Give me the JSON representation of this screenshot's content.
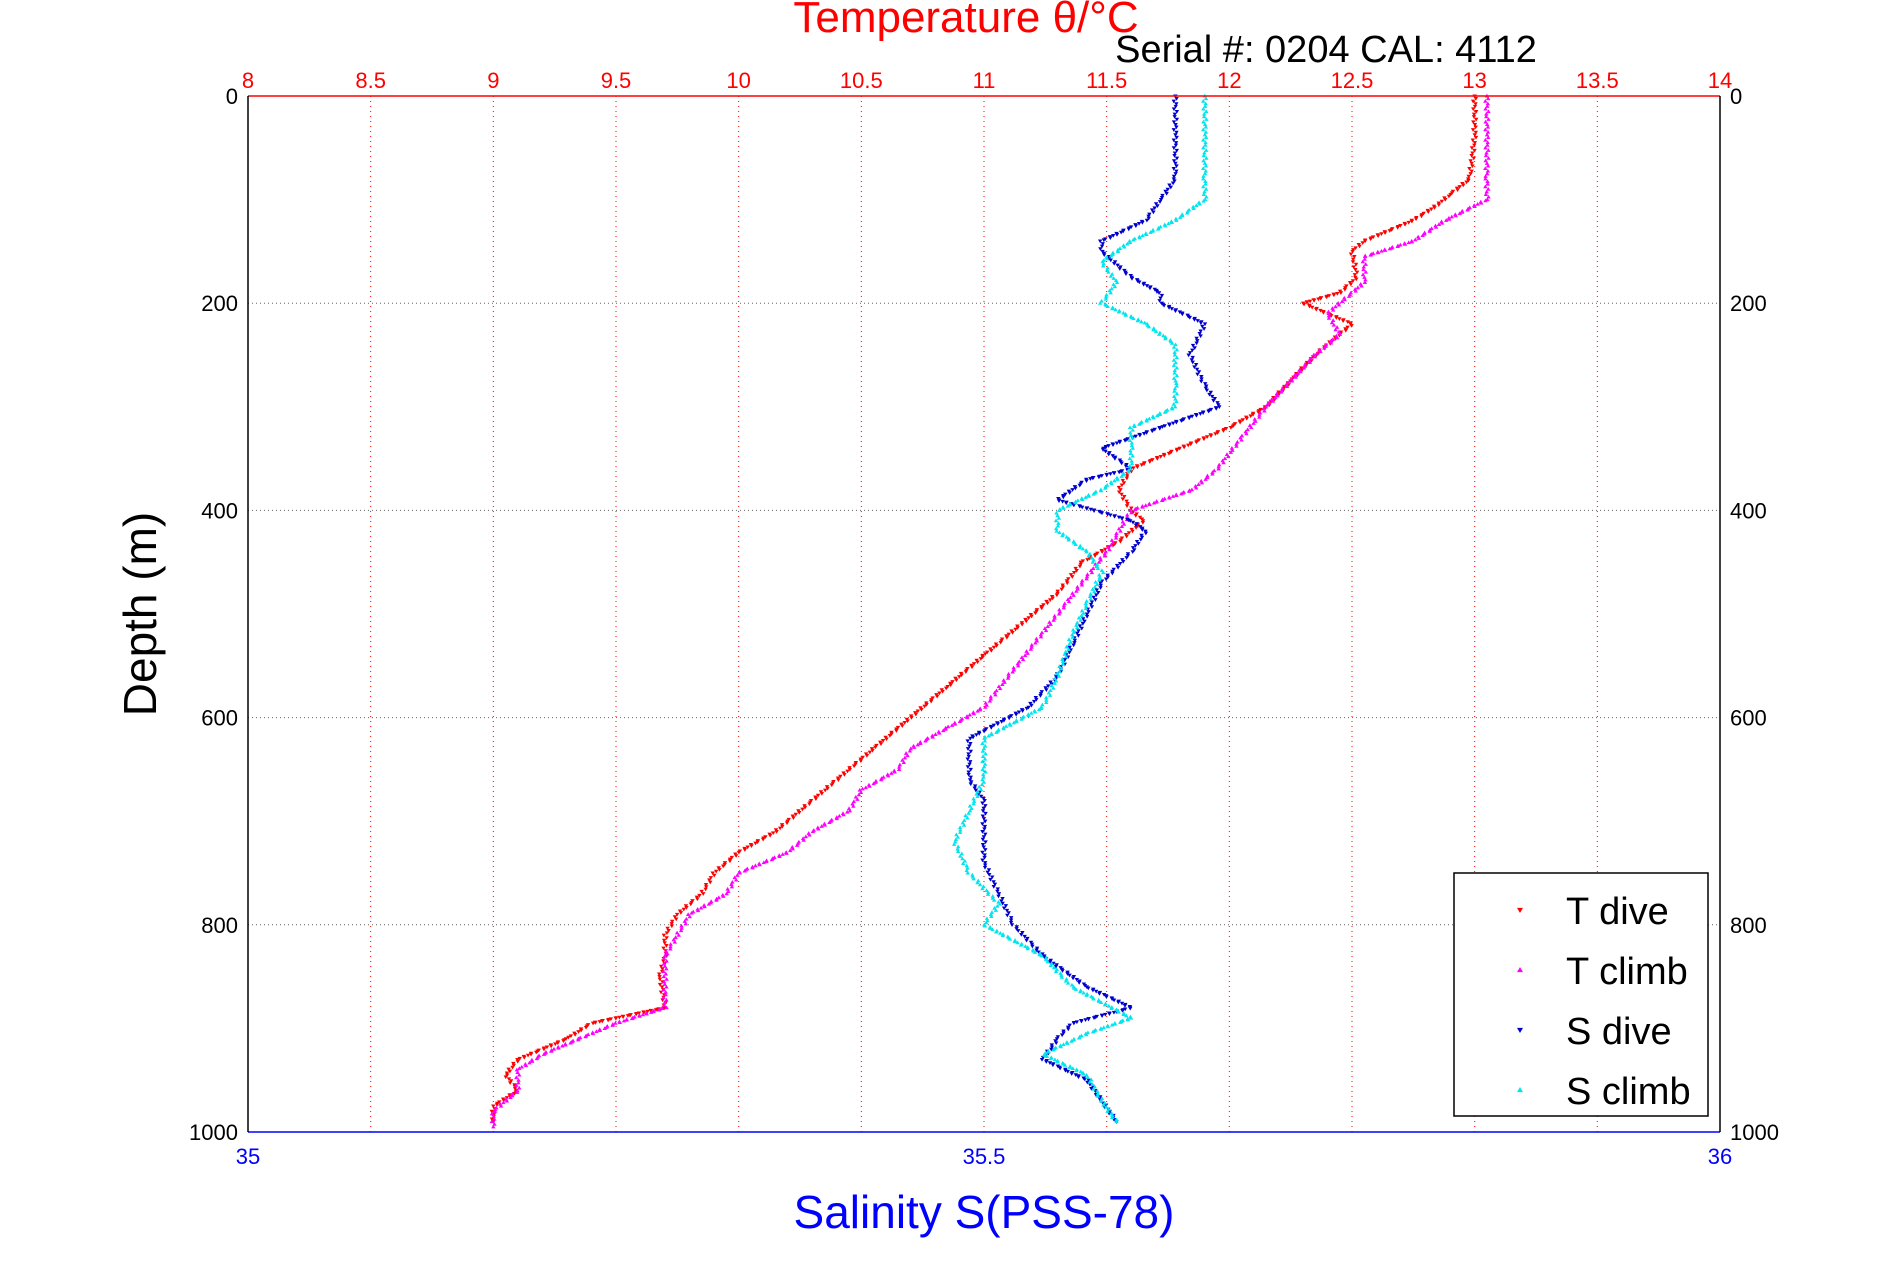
{
  "chart_data": {
    "type": "scatter",
    "title": "Temperature θ/°C",
    "subtitle": "Serial #: 0204  CAL: 4112",
    "ylabel": "Depth (m)",
    "xlabel": "Salinity S(PSS-78)",
    "colors": {
      "temperature_axis": "#ff0000",
      "salinity_axis": "#0000ff",
      "T dive": "#ff0000",
      "T climb": "#ff00ff",
      "S dive": "#0000cc",
      "S climb": "#00e5ee"
    },
    "axes": {
      "depth": {
        "range": [
          0,
          1000
        ],
        "reversed": true,
        "ticks": [
          0,
          200,
          400,
          600,
          800,
          1000
        ],
        "tick_labels": [
          "0",
          "200",
          "400",
          "600",
          "800",
          "1000"
        ]
      },
      "temperature": {
        "position": "top",
        "range": [
          8,
          14
        ],
        "ticks": [
          8,
          8.5,
          9,
          9.5,
          10,
          10.5,
          11,
          11.5,
          12,
          12.5,
          13,
          13.5,
          14
        ],
        "tick_labels": [
          "8",
          "8.5",
          "9",
          "9.5",
          "10",
          "10.5",
          "11",
          "11.5",
          "12",
          "12.5",
          "13",
          "13.5",
          "14"
        ],
        "grid": true
      },
      "salinity": {
        "position": "bottom",
        "range": [
          35,
          36
        ],
        "ticks": [
          35,
          35.5,
          36
        ],
        "tick_labels": [
          "35",
          "35.5",
          "36"
        ]
      }
    },
    "grid": {
      "vertical": "dotted red at temperature ticks",
      "horizontal": "dotted grey at depth ticks"
    },
    "legend": {
      "position": "bottom-right",
      "entries": [
        "T dive",
        "T climb",
        "S dive",
        "S climb"
      ]
    },
    "series": [
      {
        "name": "T dive",
        "axis": "temperature",
        "marker": "triangle-down",
        "points": [
          [
            0,
            13.0
          ],
          [
            40,
            13.0
          ],
          [
            80,
            12.98
          ],
          [
            95,
            12.9
          ],
          [
            105,
            12.85
          ],
          [
            120,
            12.75
          ],
          [
            140,
            12.55
          ],
          [
            150,
            12.5
          ],
          [
            175,
            12.52
          ],
          [
            190,
            12.45
          ],
          [
            200,
            12.3
          ],
          [
            220,
            12.5
          ],
          [
            250,
            12.35
          ],
          [
            275,
            12.25
          ],
          [
            300,
            12.15
          ],
          [
            320,
            12.0
          ],
          [
            340,
            11.8
          ],
          [
            360,
            11.6
          ],
          [
            380,
            11.55
          ],
          [
            400,
            11.6
          ],
          [
            410,
            11.65
          ],
          [
            430,
            11.55
          ],
          [
            450,
            11.4
          ],
          [
            480,
            11.3
          ],
          [
            510,
            11.15
          ],
          [
            540,
            11.0
          ],
          [
            570,
            10.85
          ],
          [
            600,
            10.7
          ],
          [
            630,
            10.55
          ],
          [
            650,
            10.45
          ],
          [
            670,
            10.35
          ],
          [
            690,
            10.25
          ],
          [
            710,
            10.15
          ],
          [
            730,
            10.0
          ],
          [
            750,
            9.9
          ],
          [
            770,
            9.85
          ],
          [
            790,
            9.75
          ],
          [
            810,
            9.7
          ],
          [
            830,
            9.7
          ],
          [
            850,
            9.68
          ],
          [
            880,
            9.7
          ],
          [
            895,
            9.4
          ],
          [
            910,
            9.3
          ],
          [
            930,
            9.1
          ],
          [
            945,
            9.05
          ],
          [
            960,
            9.1
          ],
          [
            975,
            9.0
          ],
          [
            990,
            9.0
          ]
        ]
      },
      {
        "name": "T climb",
        "axis": "temperature",
        "marker": "triangle-up",
        "points": [
          [
            0,
            13.05
          ],
          [
            40,
            13.05
          ],
          [
            80,
            13.05
          ],
          [
            100,
            13.05
          ],
          [
            120,
            12.88
          ],
          [
            140,
            12.75
          ],
          [
            155,
            12.55
          ],
          [
            180,
            12.55
          ],
          [
            200,
            12.45
          ],
          [
            210,
            12.4
          ],
          [
            230,
            12.45
          ],
          [
            250,
            12.35
          ],
          [
            275,
            12.25
          ],
          [
            300,
            12.15
          ],
          [
            330,
            12.05
          ],
          [
            360,
            11.95
          ],
          [
            380,
            11.85
          ],
          [
            400,
            11.6
          ],
          [
            420,
            11.55
          ],
          [
            440,
            11.5
          ],
          [
            470,
            11.4
          ],
          [
            500,
            11.3
          ],
          [
            530,
            11.2
          ],
          [
            560,
            11.1
          ],
          [
            590,
            11.0
          ],
          [
            610,
            10.85
          ],
          [
            630,
            10.7
          ],
          [
            650,
            10.65
          ],
          [
            670,
            10.5
          ],
          [
            690,
            10.45
          ],
          [
            710,
            10.3
          ],
          [
            730,
            10.2
          ],
          [
            750,
            10.0
          ],
          [
            770,
            9.95
          ],
          [
            790,
            9.8
          ],
          [
            810,
            9.75
          ],
          [
            830,
            9.7
          ],
          [
            850,
            9.7
          ],
          [
            880,
            9.7
          ],
          [
            895,
            9.5
          ],
          [
            910,
            9.35
          ],
          [
            925,
            9.2
          ],
          [
            940,
            9.1
          ],
          [
            960,
            9.1
          ],
          [
            980,
            9.0
          ],
          [
            995,
            9.0
          ]
        ]
      },
      {
        "name": "S dive",
        "axis": "salinity",
        "marker": "triangle-down",
        "points": [
          [
            0,
            35.63
          ],
          [
            40,
            35.63
          ],
          [
            80,
            35.63
          ],
          [
            100,
            35.62
          ],
          [
            120,
            35.61
          ],
          [
            140,
            35.58
          ],
          [
            150,
            35.58
          ],
          [
            175,
            35.6
          ],
          [
            190,
            35.62
          ],
          [
            200,
            35.62
          ],
          [
            220,
            35.65
          ],
          [
            250,
            35.64
          ],
          [
            280,
            35.65
          ],
          [
            300,
            35.66
          ],
          [
            320,
            35.62
          ],
          [
            340,
            35.58
          ],
          [
            360,
            35.6
          ],
          [
            370,
            35.57
          ],
          [
            390,
            35.55
          ],
          [
            410,
            35.6
          ],
          [
            420,
            35.61
          ],
          [
            440,
            35.6
          ],
          [
            470,
            35.58
          ],
          [
            500,
            35.57
          ],
          [
            530,
            35.56
          ],
          [
            560,
            35.55
          ],
          [
            590,
            35.53
          ],
          [
            620,
            35.49
          ],
          [
            640,
            35.49
          ],
          [
            660,
            35.49
          ],
          [
            680,
            35.5
          ],
          [
            710,
            35.5
          ],
          [
            740,
            35.5
          ],
          [
            770,
            35.51
          ],
          [
            800,
            35.52
          ],
          [
            830,
            35.54
          ],
          [
            860,
            35.57
          ],
          [
            880,
            35.6
          ],
          [
            895,
            35.56
          ],
          [
            910,
            35.55
          ],
          [
            930,
            35.54
          ],
          [
            950,
            35.57
          ],
          [
            970,
            35.58
          ],
          [
            990,
            35.59
          ]
        ]
      },
      {
        "name": "S climb",
        "axis": "salinity",
        "marker": "triangle-up",
        "points": [
          [
            0,
            35.65
          ],
          [
            40,
            35.65
          ],
          [
            80,
            35.65
          ],
          [
            100,
            35.65
          ],
          [
            120,
            35.63
          ],
          [
            140,
            35.6
          ],
          [
            160,
            35.58
          ],
          [
            180,
            35.59
          ],
          [
            200,
            35.58
          ],
          [
            220,
            35.61
          ],
          [
            240,
            35.63
          ],
          [
            260,
            35.63
          ],
          [
            280,
            35.63
          ],
          [
            300,
            35.63
          ],
          [
            320,
            35.6
          ],
          [
            340,
            35.6
          ],
          [
            360,
            35.6
          ],
          [
            380,
            35.58
          ],
          [
            400,
            35.55
          ],
          [
            420,
            35.55
          ],
          [
            440,
            35.57
          ],
          [
            460,
            35.58
          ],
          [
            490,
            35.57
          ],
          [
            520,
            35.56
          ],
          [
            560,
            35.55
          ],
          [
            590,
            35.54
          ],
          [
            620,
            35.5
          ],
          [
            640,
            35.5
          ],
          [
            660,
            35.5
          ],
          [
            690,
            35.49
          ],
          [
            720,
            35.48
          ],
          [
            750,
            35.49
          ],
          [
            780,
            35.51
          ],
          [
            800,
            35.5
          ],
          [
            830,
            35.54
          ],
          [
            860,
            35.56
          ],
          [
            890,
            35.6
          ],
          [
            905,
            35.57
          ],
          [
            925,
            35.54
          ],
          [
            945,
            35.57
          ],
          [
            970,
            35.58
          ],
          [
            990,
            35.59
          ]
        ]
      }
    ]
  }
}
